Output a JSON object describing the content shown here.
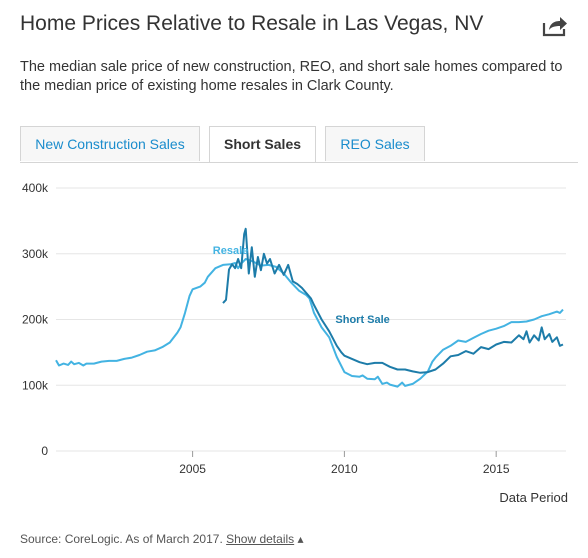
{
  "header": {
    "title": "Home Prices Relative to Resale in Las Vegas, NV",
    "subtitle": "The median sale price of new construction, REO, and short sale homes compared to the median price of existing home resales in Clark County.",
    "share_icon": "share-arrow-icon"
  },
  "tabs": [
    {
      "label": "New Construction Sales",
      "active": false
    },
    {
      "label": "Short Sales",
      "active": true
    },
    {
      "label": "REO Sales",
      "active": false
    }
  ],
  "colors": {
    "resale": "#43b3e2",
    "short_sale": "#1d7ca9",
    "grid": "#e6e6e6",
    "axis_text": "#333333",
    "link": "#1a8ccc"
  },
  "chart_data": {
    "type": "line",
    "title": "",
    "xlabel": "Data Period",
    "ylabel": "",
    "xlim": [
      2000.5,
      2017.3
    ],
    "ylim": [
      0,
      400000
    ],
    "x_ticks": [
      2005,
      2010,
      2015
    ],
    "x_tick_labels": [
      "2005",
      "2010",
      "2015"
    ],
    "y_ticks": [
      0,
      100000,
      200000,
      300000,
      400000
    ],
    "y_tick_labels": [
      "0",
      "100k",
      "200k",
      "300k",
      "400k"
    ],
    "grid": "horizontal",
    "series": [
      {
        "name": "Resale",
        "color": "#43b3e2",
        "points": [
          [
            2000.5,
            138000
          ],
          [
            2000.6,
            130000
          ],
          [
            2000.75,
            133000
          ],
          [
            2000.9,
            131000
          ],
          [
            2001.0,
            136000
          ],
          [
            2001.1,
            132000
          ],
          [
            2001.25,
            134000
          ],
          [
            2001.4,
            130000
          ],
          [
            2001.5,
            133000
          ],
          [
            2001.75,
            133000
          ],
          [
            2002.0,
            136000
          ],
          [
            2002.25,
            137000
          ],
          [
            2002.5,
            137000
          ],
          [
            2002.75,
            140000
          ],
          [
            2003.0,
            142000
          ],
          [
            2003.25,
            146000
          ],
          [
            2003.5,
            151000
          ],
          [
            2003.75,
            153000
          ],
          [
            2004.0,
            158000
          ],
          [
            2004.25,
            165000
          ],
          [
            2004.5,
            180000
          ],
          [
            2004.6,
            188000
          ],
          [
            2004.75,
            210000
          ],
          [
            2004.9,
            236000
          ],
          [
            2005.0,
            246000
          ],
          [
            2005.25,
            250000
          ],
          [
            2005.4,
            256000
          ],
          [
            2005.5,
            265000
          ],
          [
            2005.75,
            278000
          ],
          [
            2006.0,
            283000
          ],
          [
            2006.25,
            284000
          ],
          [
            2006.4,
            286000
          ],
          [
            2006.5,
            278000
          ],
          [
            2006.6,
            285000
          ],
          [
            2006.75,
            292000
          ],
          [
            2007.0,
            288000
          ],
          [
            2007.25,
            282000
          ],
          [
            2007.5,
            283000
          ],
          [
            2007.75,
            280000
          ],
          [
            2008.0,
            270000
          ],
          [
            2008.25,
            256000
          ],
          [
            2008.5,
            244000
          ],
          [
            2008.75,
            237000
          ],
          [
            2008.85,
            232000
          ],
          [
            2009.0,
            210000
          ],
          [
            2009.25,
            188000
          ],
          [
            2009.5,
            173000
          ],
          [
            2009.75,
            143000
          ],
          [
            2010.0,
            120000
          ],
          [
            2010.25,
            114000
          ],
          [
            2010.5,
            113000
          ],
          [
            2010.6,
            115000
          ],
          [
            2010.75,
            110000
          ],
          [
            2011.0,
            109000
          ],
          [
            2011.1,
            113000
          ],
          [
            2011.25,
            102000
          ],
          [
            2011.4,
            104000
          ],
          [
            2011.5,
            101000
          ],
          [
            2011.75,
            98000
          ],
          [
            2011.9,
            104000
          ],
          [
            2012.0,
            99000
          ],
          [
            2012.25,
            102000
          ],
          [
            2012.5,
            110000
          ],
          [
            2012.75,
            121000
          ],
          [
            2012.9,
            136000
          ],
          [
            2013.0,
            142000
          ],
          [
            2013.25,
            154000
          ],
          [
            2013.5,
            160000
          ],
          [
            2013.75,
            168000
          ],
          [
            2014.0,
            166000
          ],
          [
            2014.25,
            172000
          ],
          [
            2014.5,
            178000
          ],
          [
            2014.75,
            183000
          ],
          [
            2015.0,
            186000
          ],
          [
            2015.25,
            190000
          ],
          [
            2015.5,
            196000
          ],
          [
            2015.75,
            196000
          ],
          [
            2016.0,
            197000
          ],
          [
            2016.25,
            200000
          ],
          [
            2016.4,
            203000
          ],
          [
            2016.5,
            205000
          ],
          [
            2016.75,
            208000
          ],
          [
            2017.0,
            212000
          ],
          [
            2017.1,
            210000
          ],
          [
            2017.2,
            215000
          ]
        ]
      },
      {
        "name": "Short Sale",
        "color": "#1d7ca9",
        "points": [
          [
            2006.0,
            225000
          ],
          [
            2006.1,
            230000
          ],
          [
            2006.2,
            276000
          ],
          [
            2006.3,
            284000
          ],
          [
            2006.4,
            278000
          ],
          [
            2006.5,
            292000
          ],
          [
            2006.6,
            278000
          ],
          [
            2006.7,
            330000
          ],
          [
            2006.75,
            338000
          ],
          [
            2006.85,
            270000
          ],
          [
            2006.95,
            310000
          ],
          [
            2007.05,
            265000
          ],
          [
            2007.15,
            295000
          ],
          [
            2007.25,
            275000
          ],
          [
            2007.35,
            300000
          ],
          [
            2007.45,
            285000
          ],
          [
            2007.55,
            292000
          ],
          [
            2007.7,
            270000
          ],
          [
            2007.85,
            283000
          ],
          [
            2008.0,
            268000
          ],
          [
            2008.15,
            283000
          ],
          [
            2008.3,
            258000
          ],
          [
            2008.45,
            254000
          ],
          [
            2008.6,
            248000
          ],
          [
            2008.75,
            240000
          ],
          [
            2008.9,
            232000
          ],
          [
            2009.0,
            222000
          ],
          [
            2009.25,
            200000
          ],
          [
            2009.5,
            182000
          ],
          [
            2009.75,
            160000
          ],
          [
            2009.9,
            150000
          ],
          [
            2010.0,
            145000
          ],
          [
            2010.25,
            140000
          ],
          [
            2010.5,
            135000
          ],
          [
            2010.75,
            132000
          ],
          [
            2011.0,
            134000
          ],
          [
            2011.25,
            134000
          ],
          [
            2011.5,
            128000
          ],
          [
            2011.75,
            124000
          ],
          [
            2012.0,
            124000
          ],
          [
            2012.25,
            121000
          ],
          [
            2012.5,
            119000
          ],
          [
            2012.75,
            120000
          ],
          [
            2013.0,
            124000
          ],
          [
            2013.25,
            133000
          ],
          [
            2013.5,
            144000
          ],
          [
            2013.75,
            146000
          ],
          [
            2014.0,
            152000
          ],
          [
            2014.25,
            148000
          ],
          [
            2014.5,
            158000
          ],
          [
            2014.75,
            155000
          ],
          [
            2015.0,
            162000
          ],
          [
            2015.25,
            166000
          ],
          [
            2015.5,
            165000
          ],
          [
            2015.75,
            176000
          ],
          [
            2015.9,
            170000
          ],
          [
            2016.0,
            182000
          ],
          [
            2016.1,
            165000
          ],
          [
            2016.25,
            176000
          ],
          [
            2016.4,
            168000
          ],
          [
            2016.5,
            188000
          ],
          [
            2016.6,
            170000
          ],
          [
            2016.75,
            178000
          ],
          [
            2016.85,
            166000
          ],
          [
            2017.0,
            173000
          ],
          [
            2017.1,
            160000
          ],
          [
            2017.2,
            162000
          ]
        ]
      }
    ],
    "annotations": [
      {
        "text": "Resale",
        "series": "Resale",
        "at": [
          2006.25,
          300000
        ]
      },
      {
        "text": "Short Sale",
        "series": "Short Sale",
        "at": [
          2010.6,
          195000
        ]
      }
    ]
  },
  "footer": {
    "source_text": "Source: CoreLogic. As of March 2017. ",
    "details_link": "Show details",
    "details_caret": "▴"
  }
}
